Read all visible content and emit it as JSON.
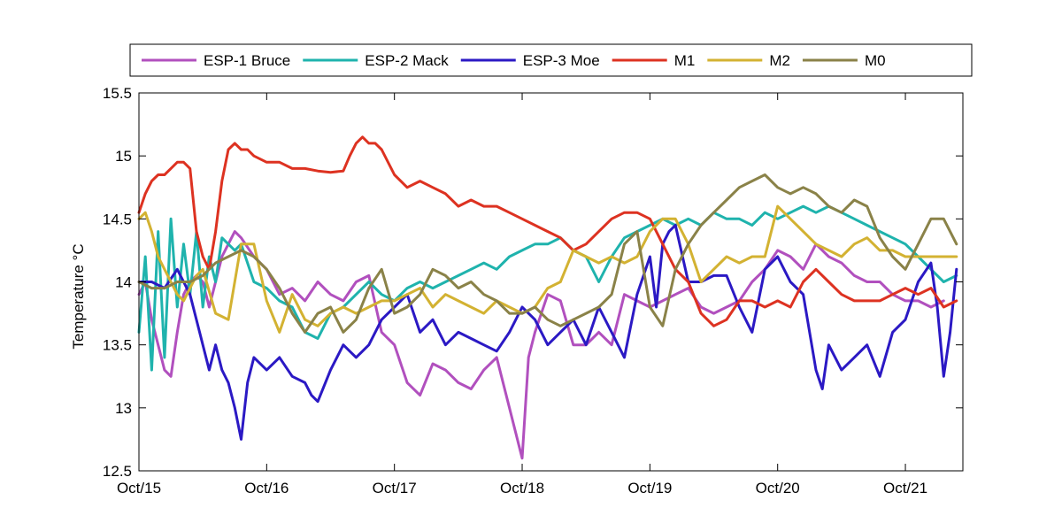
{
  "chart_data": {
    "type": "line",
    "title": "",
    "xlabel": "",
    "ylabel": "Temperature °C",
    "xlim": [
      0,
      6.45
    ],
    "ylim": [
      12.5,
      15.5
    ],
    "grid": false,
    "legend_position": "top",
    "x_tick_values": [
      0,
      1,
      2,
      3,
      4,
      5,
      6
    ],
    "x_tick_labels": [
      "Oct/15",
      "Oct/16",
      "Oct/17",
      "Oct/18",
      "Oct/19",
      "Oct/20",
      "Oct/21"
    ],
    "y_tick_values": [
      12.5,
      13,
      13.5,
      14,
      14.5,
      15,
      15.5
    ],
    "y_tick_labels": [
      "12.5",
      "13",
      "13.5",
      "14",
      "14.5",
      "15",
      "15.5"
    ],
    "series": [
      {
        "name": "ESP-1 Bruce",
        "color": "#b150be",
        "x": [
          0,
          0.05,
          0.1,
          0.15,
          0.2,
          0.25,
          0.3,
          0.35,
          0.4,
          0.45,
          0.5,
          0.55,
          0.6,
          0.65,
          0.7,
          0.75,
          0.8,
          0.9,
          1.0,
          1.1,
          1.2,
          1.3,
          1.4,
          1.5,
          1.6,
          1.7,
          1.8,
          1.9,
          2.0,
          2.1,
          2.2,
          2.3,
          2.4,
          2.5,
          2.6,
          2.7,
          2.8,
          2.9,
          2.95,
          3.0,
          3.05,
          3.1,
          3.2,
          3.3,
          3.4,
          3.5,
          3.6,
          3.7,
          3.8,
          3.9,
          4.0,
          4.1,
          4.2,
          4.3,
          4.4,
          4.5,
          4.6,
          4.7,
          4.8,
          4.9,
          5.0,
          5.1,
          5.2,
          5.3,
          5.4,
          5.5,
          5.6,
          5.7,
          5.8,
          5.9,
          6.0,
          6.1,
          6.2,
          6.3
        ],
        "y": [
          13.9,
          14.0,
          13.7,
          13.5,
          13.3,
          13.25,
          13.6,
          13.9,
          14.0,
          14.05,
          14.0,
          13.8,
          14.0,
          14.2,
          14.3,
          14.4,
          14.35,
          14.2,
          14.1,
          13.9,
          13.95,
          13.85,
          14.0,
          13.9,
          13.85,
          14.0,
          14.05,
          13.6,
          13.5,
          13.2,
          13.1,
          13.35,
          13.3,
          13.2,
          13.15,
          13.3,
          13.4,
          13.0,
          12.8,
          12.6,
          13.4,
          13.6,
          13.9,
          13.85,
          13.5,
          13.5,
          13.6,
          13.5,
          13.9,
          13.85,
          13.8,
          13.85,
          13.9,
          13.95,
          13.8,
          13.75,
          13.8,
          13.85,
          14.0,
          14.1,
          14.25,
          14.2,
          14.1,
          14.3,
          14.2,
          14.15,
          14.05,
          14.0,
          14.0,
          13.9,
          13.85,
          13.85,
          13.8,
          13.85
        ]
      },
      {
        "name": "ESP-2 Mack",
        "color": "#1fb3ad",
        "x": [
          0,
          0.05,
          0.1,
          0.15,
          0.2,
          0.25,
          0.3,
          0.35,
          0.4,
          0.45,
          0.5,
          0.55,
          0.6,
          0.65,
          0.7,
          0.75,
          0.8,
          0.9,
          1.0,
          1.1,
          1.2,
          1.3,
          1.4,
          1.5,
          1.6,
          1.7,
          1.8,
          1.9,
          2.0,
          2.1,
          2.2,
          2.3,
          2.4,
          2.5,
          2.6,
          2.7,
          2.8,
          2.9,
          3.0,
          3.1,
          3.2,
          3.3,
          3.4,
          3.5,
          3.6,
          3.7,
          3.8,
          3.9,
          4.0,
          4.1,
          4.2,
          4.3,
          4.4,
          4.5,
          4.6,
          4.7,
          4.8,
          4.9,
          5.0,
          5.1,
          5.2,
          5.3,
          5.4,
          5.5,
          5.6,
          5.7,
          5.8,
          5.9,
          6.0,
          6.1,
          6.2,
          6.3,
          6.4
        ],
        "y": [
          13.6,
          14.2,
          13.3,
          14.4,
          13.4,
          14.5,
          13.8,
          14.3,
          13.9,
          14.4,
          13.8,
          14.2,
          14.0,
          14.35,
          14.3,
          14.25,
          14.3,
          14.0,
          13.95,
          13.85,
          13.8,
          13.6,
          13.55,
          13.75,
          13.8,
          13.9,
          14.0,
          13.9,
          13.85,
          13.95,
          14.0,
          13.95,
          14.0,
          14.05,
          14.1,
          14.15,
          14.1,
          14.2,
          14.25,
          14.3,
          14.3,
          14.35,
          14.25,
          14.2,
          14.0,
          14.2,
          14.35,
          14.4,
          14.45,
          14.5,
          14.45,
          14.5,
          14.45,
          14.55,
          14.5,
          14.5,
          14.45,
          14.55,
          14.5,
          14.55,
          14.6,
          14.55,
          14.6,
          14.55,
          14.5,
          14.45,
          14.4,
          14.35,
          14.3,
          14.2,
          14.1,
          14.0,
          14.05
        ]
      },
      {
        "name": "ESP-3 Moe",
        "color": "#2b19c4",
        "x": [
          0,
          0.1,
          0.2,
          0.3,
          0.4,
          0.5,
          0.55,
          0.6,
          0.65,
          0.7,
          0.75,
          0.8,
          0.85,
          0.9,
          1.0,
          1.1,
          1.2,
          1.3,
          1.35,
          1.4,
          1.5,
          1.6,
          1.7,
          1.8,
          1.9,
          2.0,
          2.1,
          2.2,
          2.3,
          2.4,
          2.5,
          2.6,
          2.7,
          2.8,
          2.9,
          3.0,
          3.1,
          3.2,
          3.3,
          3.4,
          3.5,
          3.6,
          3.7,
          3.8,
          3.9,
          4.0,
          4.05,
          4.1,
          4.15,
          4.2,
          4.3,
          4.4,
          4.5,
          4.6,
          4.7,
          4.8,
          4.9,
          5.0,
          5.1,
          5.2,
          5.3,
          5.35,
          5.4,
          5.5,
          5.6,
          5.7,
          5.8,
          5.9,
          6.0,
          6.1,
          6.2,
          6.25,
          6.3,
          6.35,
          6.4
        ],
        "y": [
          14.0,
          14.0,
          13.95,
          14.1,
          13.9,
          13.5,
          13.3,
          13.5,
          13.3,
          13.2,
          13.0,
          12.75,
          13.2,
          13.4,
          13.3,
          13.4,
          13.25,
          13.2,
          13.1,
          13.05,
          13.3,
          13.5,
          13.4,
          13.5,
          13.7,
          13.8,
          13.9,
          13.6,
          13.7,
          13.5,
          13.6,
          13.55,
          13.5,
          13.45,
          13.6,
          13.8,
          13.7,
          13.5,
          13.6,
          13.7,
          13.5,
          13.8,
          13.6,
          13.4,
          13.9,
          14.2,
          13.8,
          14.3,
          14.4,
          14.45,
          14.0,
          14.0,
          14.05,
          14.05,
          13.8,
          13.6,
          14.1,
          14.2,
          14.0,
          13.9,
          13.3,
          13.15,
          13.5,
          13.3,
          13.4,
          13.5,
          13.25,
          13.6,
          13.7,
          14.0,
          14.15,
          13.8,
          13.25,
          13.6,
          14.1
        ]
      },
      {
        "name": "M1",
        "color": "#dd3221",
        "x": [
          0,
          0.05,
          0.1,
          0.15,
          0.2,
          0.25,
          0.3,
          0.35,
          0.4,
          0.45,
          0.5,
          0.55,
          0.6,
          0.65,
          0.7,
          0.75,
          0.8,
          0.85,
          0.9,
          1.0,
          1.1,
          1.2,
          1.3,
          1.4,
          1.5,
          1.6,
          1.65,
          1.7,
          1.75,
          1.8,
          1.85,
          1.9,
          2.0,
          2.1,
          2.2,
          2.3,
          2.4,
          2.5,
          2.6,
          2.7,
          2.8,
          2.9,
          3.0,
          3.1,
          3.2,
          3.3,
          3.4,
          3.5,
          3.6,
          3.7,
          3.8,
          3.9,
          4.0,
          4.1,
          4.2,
          4.3,
          4.4,
          4.5,
          4.6,
          4.7,
          4.8,
          4.9,
          5.0,
          5.1,
          5.2,
          5.3,
          5.4,
          5.5,
          5.6,
          5.7,
          5.8,
          5.9,
          6.0,
          6.1,
          6.2,
          6.3,
          6.4
        ],
        "y": [
          14.55,
          14.7,
          14.8,
          14.85,
          14.85,
          14.9,
          14.95,
          14.95,
          14.9,
          14.4,
          14.2,
          14.1,
          14.4,
          14.8,
          15.05,
          15.1,
          15.05,
          15.05,
          15.0,
          14.95,
          14.95,
          14.9,
          14.9,
          14.88,
          14.87,
          14.88,
          15.0,
          15.1,
          15.15,
          15.1,
          15.1,
          15.05,
          14.85,
          14.75,
          14.8,
          14.75,
          14.7,
          14.6,
          14.65,
          14.6,
          14.6,
          14.55,
          14.5,
          14.45,
          14.4,
          14.35,
          14.25,
          14.3,
          14.4,
          14.5,
          14.55,
          14.55,
          14.5,
          14.3,
          14.1,
          14.0,
          13.75,
          13.65,
          13.7,
          13.85,
          13.85,
          13.8,
          13.85,
          13.8,
          14.0,
          14.1,
          14.0,
          13.9,
          13.85,
          13.85,
          13.85,
          13.9,
          13.95,
          13.9,
          13.95,
          13.8,
          13.85
        ]
      },
      {
        "name": "M2",
        "color": "#d3b232",
        "x": [
          0,
          0.05,
          0.1,
          0.15,
          0.2,
          0.25,
          0.3,
          0.35,
          0.4,
          0.45,
          0.5,
          0.6,
          0.7,
          0.8,
          0.9,
          1.0,
          1.1,
          1.2,
          1.3,
          1.4,
          1.5,
          1.6,
          1.7,
          1.8,
          1.9,
          2.0,
          2.1,
          2.2,
          2.3,
          2.4,
          2.5,
          2.6,
          2.7,
          2.8,
          2.9,
          3.0,
          3.1,
          3.2,
          3.3,
          3.4,
          3.5,
          3.6,
          3.7,
          3.8,
          3.9,
          4.0,
          4.1,
          4.2,
          4.3,
          4.4,
          4.5,
          4.6,
          4.7,
          4.8,
          4.9,
          5.0,
          5.1,
          5.2,
          5.3,
          5.4,
          5.5,
          5.6,
          5.7,
          5.8,
          5.9,
          6.0,
          6.1,
          6.2,
          6.3,
          6.4
        ],
        "y": [
          14.5,
          14.55,
          14.4,
          14.2,
          14.1,
          14.0,
          13.9,
          13.85,
          13.95,
          14.05,
          14.1,
          13.75,
          13.7,
          14.3,
          14.3,
          13.85,
          13.6,
          13.9,
          13.7,
          13.65,
          13.75,
          13.8,
          13.75,
          13.8,
          13.85,
          13.85,
          13.9,
          13.95,
          13.8,
          13.9,
          13.85,
          13.8,
          13.75,
          13.85,
          13.8,
          13.75,
          13.8,
          13.95,
          14.0,
          14.25,
          14.2,
          14.15,
          14.2,
          14.15,
          14.2,
          14.4,
          14.5,
          14.5,
          14.3,
          14.0,
          14.1,
          14.2,
          14.15,
          14.2,
          14.2,
          14.6,
          14.5,
          14.4,
          14.3,
          14.25,
          14.2,
          14.3,
          14.35,
          14.25,
          14.25,
          14.2,
          14.2,
          14.2,
          14.2,
          14.2
        ]
      },
      {
        "name": "M0",
        "color": "#8a8248",
        "x": [
          0,
          0.1,
          0.2,
          0.3,
          0.4,
          0.5,
          0.6,
          0.7,
          0.8,
          0.9,
          1.0,
          1.1,
          1.2,
          1.3,
          1.4,
          1.5,
          1.6,
          1.7,
          1.8,
          1.9,
          2.0,
          2.1,
          2.2,
          2.3,
          2.4,
          2.5,
          2.6,
          2.7,
          2.8,
          2.9,
          3.0,
          3.1,
          3.2,
          3.3,
          3.4,
          3.5,
          3.6,
          3.7,
          3.8,
          3.9,
          4.0,
          4.1,
          4.2,
          4.3,
          4.4,
          4.5,
          4.6,
          4.7,
          4.8,
          4.9,
          5.0,
          5.1,
          5.2,
          5.3,
          5.4,
          5.5,
          5.6,
          5.7,
          5.8,
          5.9,
          6.0,
          6.1,
          6.2,
          6.3,
          6.4
        ],
        "y": [
          14.0,
          13.95,
          13.95,
          14.0,
          14.0,
          14.05,
          14.15,
          14.2,
          14.25,
          14.2,
          14.1,
          13.95,
          13.75,
          13.6,
          13.75,
          13.8,
          13.6,
          13.7,
          13.95,
          14.1,
          13.75,
          13.8,
          13.9,
          14.1,
          14.05,
          13.95,
          14.0,
          13.9,
          13.85,
          13.75,
          13.75,
          13.8,
          13.7,
          13.65,
          13.7,
          13.75,
          13.8,
          13.9,
          14.3,
          14.4,
          13.8,
          13.65,
          14.1,
          14.3,
          14.45,
          14.55,
          14.65,
          14.75,
          14.8,
          14.85,
          14.75,
          14.7,
          14.75,
          14.7,
          14.6,
          14.55,
          14.65,
          14.6,
          14.35,
          14.2,
          14.1,
          14.3,
          14.5,
          14.5,
          14.3
        ]
      }
    ]
  }
}
